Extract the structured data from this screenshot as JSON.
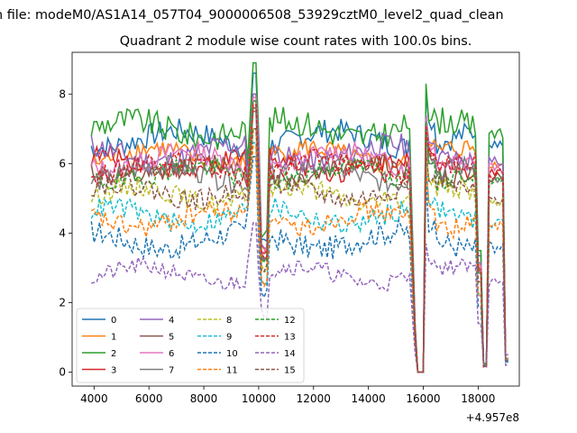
{
  "chart_data": {
    "type": "line",
    "suptitle": "n file: modeM0/AS1A14_057T04_9000006508_53929cztM0_level2_quad_clean",
    "title": "Quadrant 2 module wise count rates with 100.0s bins.",
    "xlabel": "",
    "ylabel": "",
    "x_offset_label": "+4.957e8",
    "xlim": [
      3200,
      19500
    ],
    "ylim": [
      -0.4,
      9.2
    ],
    "xticks": [
      4000,
      6000,
      8000,
      10000,
      12000,
      14000,
      16000,
      18000
    ],
    "yticks": [
      0,
      2,
      4,
      6,
      8
    ],
    "legend_position": "lower-left",
    "legend_columns": 4,
    "time_range": [
      3900,
      19100
    ],
    "dip_points": [
      [
        15400,
        1.0
      ],
      [
        15800,
        0.0
      ],
      [
        16000,
        0.0
      ],
      [
        16200,
        1.0
      ],
      [
        17950,
        1.0
      ],
      [
        18200,
        0.0
      ],
      [
        18300,
        0.0
      ],
      [
        18500,
        1.0
      ],
      [
        19000,
        1.0
      ],
      [
        19100,
        0.08
      ]
    ],
    "spike_points": [
      [
        9400,
        1.0
      ],
      [
        9700,
        1.2
      ],
      [
        9800,
        1.27
      ],
      [
        10000,
        1.05
      ],
      [
        10150,
        0.9
      ],
      [
        10250,
        0.6
      ],
      [
        10350,
        0.95
      ],
      [
        10500,
        1.0
      ]
    ],
    "series": [
      {
        "name": "0",
        "color": "#1f77b4",
        "dash": "",
        "base": 6.7,
        "amp": 0.35,
        "spike": 8.6,
        "last": 0.3
      },
      {
        "name": "1",
        "color": "#ff7f0e",
        "dash": "",
        "base": 6.2,
        "amp": 0.3,
        "spike": 8.0,
        "last": 0.4
      },
      {
        "name": "2",
        "color": "#2ca02c",
        "dash": "",
        "base": 7.0,
        "amp": 0.4,
        "spike": 8.9,
        "last": 0.35
      },
      {
        "name": "3",
        "color": "#d62728",
        "dash": "",
        "base": 6.0,
        "amp": 0.3,
        "spike": 7.8,
        "last": 0.4
      },
      {
        "name": "4",
        "color": "#9467bd",
        "dash": "",
        "base": 6.3,
        "amp": 0.35,
        "spike": 8.0,
        "last": 0.5
      },
      {
        "name": "5",
        "color": "#8c564b",
        "dash": "",
        "base": 5.8,
        "amp": 0.3,
        "spike": 7.6,
        "last": 0.4
      },
      {
        "name": "6",
        "color": "#e377c2",
        "dash": "",
        "base": 6.1,
        "amp": 0.3,
        "spike": 7.9,
        "last": 0.4
      },
      {
        "name": "7",
        "color": "#7f7f7f",
        "dash": "",
        "base": 5.7,
        "amp": 0.3,
        "spike": 7.5,
        "last": 0.4
      },
      {
        "name": "8",
        "color": "#bcbd22",
        "dash": "4,2",
        "base": 5.1,
        "amp": 0.3,
        "spike": 7.0,
        "last": 0.4
      },
      {
        "name": "9",
        "color": "#17becf",
        "dash": "4,2",
        "base": 4.5,
        "amp": 0.3,
        "spike": 6.6,
        "last": 0.35
      },
      {
        "name": "10",
        "color": "#1f77b4",
        "dash": "4,2",
        "base": 3.8,
        "amp": 0.35,
        "spike": 6.2,
        "last": 0.3
      },
      {
        "name": "11",
        "color": "#ff7f0e",
        "dash": "4,2",
        "base": 4.4,
        "amp": 0.3,
        "spike": 6.5,
        "last": 0.35
      },
      {
        "name": "12",
        "color": "#2ca02c",
        "dash": "4,2",
        "base": 5.7,
        "amp": 0.3,
        "spike": 7.8,
        "last": 0.4
      },
      {
        "name": "13",
        "color": "#d62728",
        "dash": "4,2",
        "base": 5.9,
        "amp": 0.3,
        "spike": 7.7,
        "last": 0.4
      },
      {
        "name": "14",
        "color": "#9467bd",
        "dash": "4,2",
        "base": 2.8,
        "amp": 0.25,
        "spike": 4.3,
        "last": 0.2
      },
      {
        "name": "15",
        "color": "#8c564b",
        "dash": "4,2",
        "base": 5.2,
        "amp": 0.3,
        "spike": 7.0,
        "last": 0.35
      }
    ]
  }
}
